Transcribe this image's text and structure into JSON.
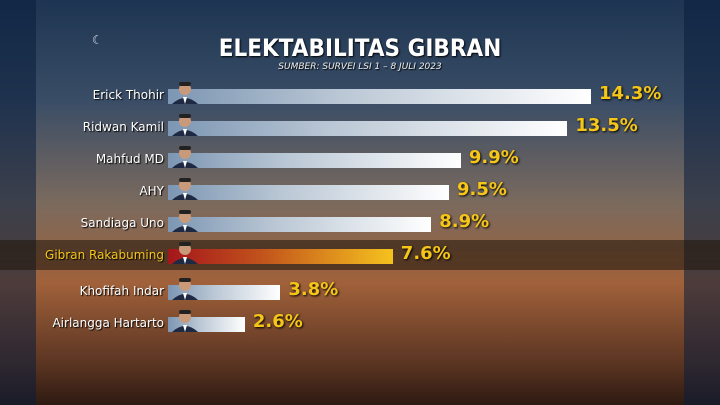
{
  "header": {
    "title": "ELEKTABILITAS GIBRAN",
    "subtitle": "SUMBER: SURVEI LSI 1 – 8 JULI 2023"
  },
  "colors": {
    "bar_default": "#b9c6d4",
    "bar_highlight": "#f6c21e",
    "value_text": "#f5c518"
  },
  "chart_data": {
    "type": "bar",
    "orientation": "horizontal",
    "title": "ELEKTABILITAS GIBRAN",
    "subtitle": "SUMBER: SURVEI LSI 1 – 8 JULI 2023",
    "unit": "%",
    "highlight": "Gibran Rakabuming",
    "grid": false,
    "categories": [
      "Erick Thohir",
      "Ridwan Kamil",
      "Mahfud MD",
      "AHY",
      "Sandiaga Uno",
      "Gibran Rakabuming",
      "Khofifah Indar",
      "Airlangga Hartarto"
    ],
    "values": [
      14.3,
      13.5,
      9.9,
      9.5,
      8.9,
      7.6,
      3.8,
      2.6
    ],
    "value_labels": [
      "14.3%",
      "13.5%",
      "9.9%",
      "9.5%",
      "8.9%",
      "7.6%",
      "3.8%",
      "2.6%"
    ]
  }
}
